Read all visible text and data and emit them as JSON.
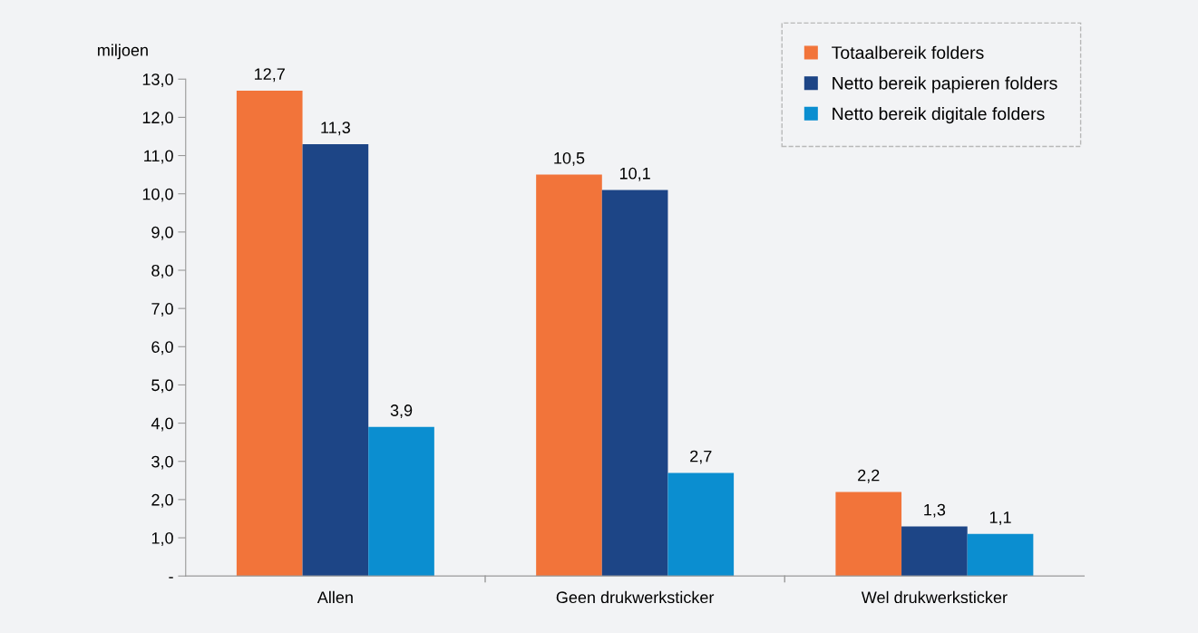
{
  "chart_data": {
    "type": "bar",
    "ylabel": "miljoen",
    "categories": [
      "Allen",
      "Geen drukwerksticker",
      "Wel drukwerksticker"
    ],
    "series": [
      {
        "name": "Totaalbereik folders",
        "color": "#f2743a",
        "values": [
          12.7,
          10.5,
          2.2
        ],
        "value_labels": [
          "12,7",
          "10,5",
          "2,2"
        ]
      },
      {
        "name": "Netto bereik papieren folders",
        "color": "#1d4586",
        "values": [
          11.3,
          10.1,
          1.3
        ],
        "value_labels": [
          "11,3",
          "10,1",
          "1,3"
        ]
      },
      {
        "name": "Netto bereik digitale folders",
        "color": "#0b8ed0",
        "values": [
          3.9,
          2.7,
          1.1
        ],
        "value_labels": [
          "3,9",
          "2,7",
          "1,1"
        ]
      }
    ],
    "ylim": [
      0,
      13
    ],
    "yticks": [
      {
        "value": 0,
        "label": "-"
      },
      {
        "value": 1,
        "label": "1,0"
      },
      {
        "value": 2,
        "label": "2,0"
      },
      {
        "value": 3,
        "label": "3,0"
      },
      {
        "value": 4,
        "label": "4,0"
      },
      {
        "value": 5,
        "label": "5,0"
      },
      {
        "value": 6,
        "label": "6,0"
      },
      {
        "value": 7,
        "label": "7,0"
      },
      {
        "value": 8,
        "label": "8,0"
      },
      {
        "value": 9,
        "label": "9,0"
      },
      {
        "value": 10,
        "label": "10,0"
      },
      {
        "value": 11,
        "label": "11,0"
      },
      {
        "value": 12,
        "label": "12,0"
      },
      {
        "value": 13,
        "label": "13,0"
      }
    ],
    "grid": false,
    "legend": "top right"
  }
}
